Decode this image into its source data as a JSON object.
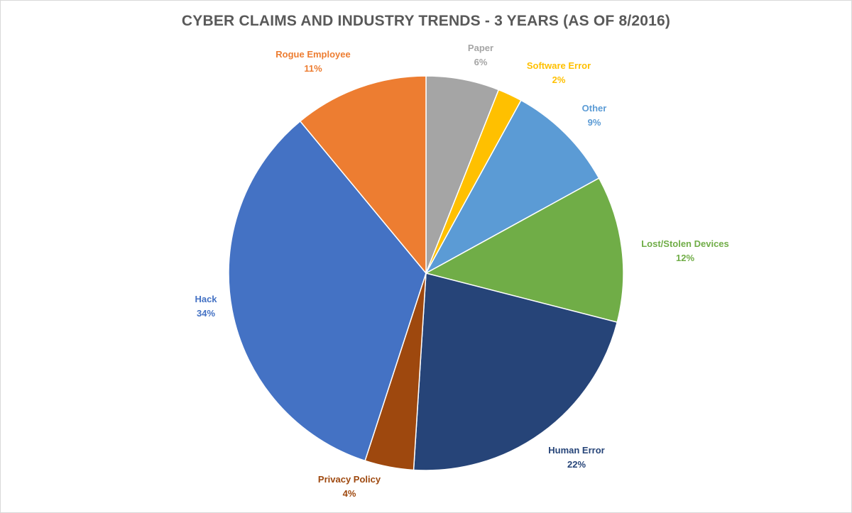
{
  "chart_data": {
    "type": "pie",
    "title": "CYBER CLAIMS AND INDUSTRY TRENDS - 3 YEARS (AS OF 8/2016)",
    "slices": [
      {
        "name": "Paper",
        "percent_label": "6%",
        "value": 6,
        "color": "#a5a5a5"
      },
      {
        "name": "Software Error",
        "percent_label": "2%",
        "value": 2,
        "color": "#ffc000"
      },
      {
        "name": "Other",
        "percent_label": "9%",
        "value": 9,
        "color": "#5b9bd5"
      },
      {
        "name": "Lost/Stolen Devices",
        "percent_label": "12%",
        "value": 12,
        "color": "#70ad47"
      },
      {
        "name": "Human Error",
        "percent_label": "22%",
        "value": 22,
        "color": "#264478"
      },
      {
        "name": "Privacy Policy",
        "percent_label": "4%",
        "value": 4,
        "color": "#9e480e"
      },
      {
        "name": "Hack",
        "percent_label": "34%",
        "value": 34,
        "color": "#4472c4"
      },
      {
        "name": "Rogue Employee",
        "percent_label": "11%",
        "value": 11,
        "color": "#ed7d31"
      }
    ],
    "start_angle": "12 o'clock",
    "direction": "clockwise",
    "legend": "none",
    "data_labels": "outside, category name and percentage"
  }
}
